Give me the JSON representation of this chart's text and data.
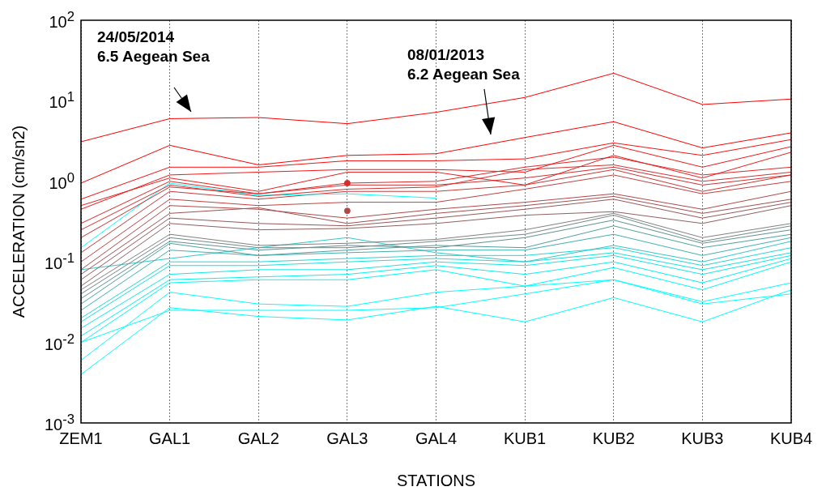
{
  "chart_data": {
    "type": "line",
    "xlabel": "STATIONS",
    "ylabel": "ACCELERATION (cm/sn2)",
    "categories": [
      "ZEM1",
      "GAL1",
      "GAL2",
      "GAL3",
      "GAL4",
      "KUB1",
      "KUB2",
      "KUB3",
      "KUB4"
    ],
    "log": "y",
    "grid": "x",
    "legend": false,
    "marker": "none",
    "line_style": "solid",
    "ylim": [
      0.001,
      100
    ],
    "yticks": [
      {
        "value": 0.001,
        "label": "10$^{-3}$"
      },
      {
        "value": 0.01,
        "label": "10$^{-2}$"
      },
      {
        "value": 0.1,
        "label": "10$^{-1}$"
      },
      {
        "value": 1,
        "label": "10$^{0}$"
      },
      {
        "value": 10,
        "label": "10$^{1}$"
      },
      {
        "value": 100,
        "label": "10$^{2}$"
      }
    ],
    "annotations": [
      "24/05/2014\n6.5 Aegean Sea",
      "08/01/2013\n6.2 Aegean Sea"
    ],
    "series": [
      {
        "color": "#ff0000",
        "values": [
          3.1,
          6,
          6.2,
          5.2,
          7.2,
          11,
          22,
          9,
          10.5
        ]
      },
      {
        "color": "#ff0000",
        "values": [
          0.95,
          2.8,
          1.6,
          2.1,
          2.2,
          3.5,
          5.5,
          2.6,
          4
        ]
      },
      {
        "color": "#f81010",
        "values": [
          0.6,
          1.5,
          1.5,
          1.8,
          1.8,
          1.9,
          3,
          2.1,
          3.3
        ]
      },
      {
        "color": "#f01818",
        "values": [
          0.45,
          1.2,
          1.3,
          1.4,
          1.4,
          1.3,
          2.8,
          1.5,
          2.7
        ]
      },
      {
        "color": "#e82020",
        "values": [
          0.5,
          1.1,
          0.75,
          1.3,
          1.3,
          0.9,
          2.1,
          1.1,
          2.3
        ]
      },
      {
        "color": "#e02828",
        "values": [
          0.3,
          1,
          0.7,
          0.95,
          1,
          1.5,
          2,
          1.2,
          1.5
        ]
      },
      {
        "color": "#d83030",
        "values": [
          0.25,
          0.9,
          0.65,
          0.8,
          0.85,
          1.4,
          1.6,
          1,
          1.3
        ]
      },
      {
        "color": "#d03030",
        "values": [
          0.2,
          0.85,
          0.7,
          0.9,
          0.9,
          1.1,
          1.5,
          0.9,
          1.2
        ]
      },
      {
        "color": "#00ffff",
        "values": [
          0.15,
          0.95,
          0.67,
          0.7,
          0.62,
          null,
          null,
          null,
          null
        ]
      },
      {
        "color": "#c83838",
        "values": [
          0.13,
          0.75,
          0.6,
          0.75,
          0.75,
          0.9,
          1.4,
          0.75,
          1.2
        ]
      },
      {
        "color": "#c04040",
        "values": [
          0.1,
          0.6,
          0.5,
          0.55,
          0.55,
          0.8,
          1.2,
          0.7,
          1
        ]
      },
      {
        "color": "#b04848",
        "values": [
          0.08,
          0.5,
          0.45,
          0.35,
          0.45,
          0.55,
          0.7,
          0.45,
          0.75
        ]
      },
      {
        "color": "#a05050",
        "values": [
          0.07,
          0.4,
          0.47,
          0.3,
          0.4,
          0.5,
          0.65,
          0.4,
          0.6
        ]
      },
      {
        "color": "#985858",
        "values": [
          0.06,
          0.35,
          0.3,
          0.28,
          0.35,
          0.45,
          0.6,
          0.35,
          0.55
        ]
      },
      {
        "color": "#906060",
        "values": [
          0.05,
          0.3,
          0.25,
          0.26,
          0.3,
          0.38,
          0.42,
          0.3,
          0.5
        ]
      },
      {
        "color": "#808080",
        "values": [
          0.045,
          0.22,
          0.16,
          0.17,
          0.19,
          0.25,
          0.4,
          0.2,
          0.3
        ]
      },
      {
        "color": "#708888",
        "values": [
          0.04,
          0.2,
          0.15,
          0.15,
          0.18,
          0.22,
          0.38,
          0.18,
          0.28
        ]
      },
      {
        "color": "#609090",
        "values": [
          0.035,
          0.18,
          0.14,
          0.16,
          0.15,
          0.2,
          0.33,
          0.17,
          0.25
        ]
      },
      {
        "color": "#50a0a0",
        "values": [
          0.03,
          0.17,
          0.12,
          0.14,
          0.16,
          0.15,
          0.28,
          0.15,
          0.22
        ]
      },
      {
        "color": "#40b0b0",
        "values": [
          0.025,
          0.14,
          0.12,
          0.13,
          0.14,
          0.14,
          0.22,
          0.12,
          0.2
        ]
      },
      {
        "color": "#30c8c8",
        "values": [
          0.08,
          0.11,
          0.15,
          0.2,
          0.13,
          0.1,
          0.16,
          0.1,
          0.18
        ]
      },
      {
        "color": "#20d8d8",
        "values": [
          0.02,
          0.1,
          0.1,
          0.11,
          0.12,
          0.12,
          0.15,
          0.09,
          0.15
        ]
      },
      {
        "color": "#18e0e0",
        "values": [
          0.018,
          0.09,
          0.09,
          0.1,
          0.11,
          0.1,
          0.13,
          0.08,
          0.13
        ]
      },
      {
        "color": "#10e8e8",
        "values": [
          0.015,
          0.07,
          0.08,
          0.08,
          0.1,
          0.09,
          0.12,
          0.07,
          0.12
        ]
      },
      {
        "color": "#08f0f0",
        "values": [
          0.012,
          0.06,
          0.065,
          0.07,
          0.09,
          0.07,
          0.1,
          0.055,
          0.11
        ]
      },
      {
        "color": "#00f8f8",
        "values": [
          0.01,
          0.055,
          0.06,
          0.06,
          0.08,
          0.05,
          0.085,
          0.045,
          0.1
        ]
      },
      {
        "color": "#00ffff",
        "values": [
          0.006,
          0.042,
          0.03,
          0.028,
          0.042,
          0.05,
          0.06,
          0.032,
          0.055
        ]
      },
      {
        "color": "#00ffff",
        "values": [
          0.01,
          0.025,
          0.025,
          0.025,
          0.027,
          0.04,
          0.06,
          0.03,
          0.04
        ]
      },
      {
        "color": "#00ffff",
        "values": [
          0.004,
          0.027,
          0.021,
          0.019,
          0.028,
          0.018,
          0.036,
          0.018,
          0.045
        ]
      },
      {
        "type": "scatter",
        "marker": "circle",
        "x": [
          "GAL3",
          "GAL3"
        ],
        "values": [
          0.95,
          0.43
        ],
        "colors": [
          "#d03030",
          "#b04848"
        ]
      }
    ]
  }
}
